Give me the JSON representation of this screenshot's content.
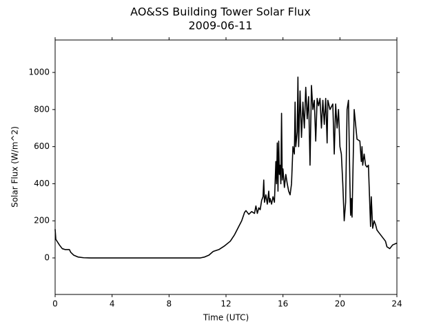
{
  "chart_data": {
    "type": "line",
    "title": "AO&SS Building Tower Solar Flux",
    "subtitle": "2009-06-11",
    "xlabel": "Time (UTC)",
    "ylabel": "Solar Flux (W/m^2)",
    "xlim": [
      0,
      24
    ],
    "xticks": [
      0,
      4,
      8,
      12,
      16,
      20,
      24
    ],
    "ylim": [
      -197,
      1175
    ],
    "yticks": [
      0,
      200,
      400,
      600,
      800,
      1000
    ],
    "series": [
      {
        "name": "Solar Flux",
        "color": "#000000",
        "x": [
          0,
          0.05,
          0.3,
          0.5,
          0.7,
          1.0,
          1.1,
          1.3,
          1.6,
          2.0,
          2.5,
          10.2,
          10.5,
          10.8,
          11.1,
          11.5,
          11.9,
          12.3,
          12.6,
          12.9,
          13.1,
          13.3,
          13.4,
          13.6,
          13.8,
          14.0,
          14.1,
          14.2,
          14.3,
          14.4,
          14.5,
          14.6,
          14.65,
          14.7,
          14.8,
          14.9,
          15.0,
          15.05,
          15.1,
          15.2,
          15.3,
          15.4,
          15.5,
          15.55,
          15.6,
          15.65,
          15.7,
          15.75,
          15.8,
          15.85,
          15.9,
          15.95,
          16.0,
          16.1,
          16.2,
          16.3,
          16.4,
          16.5,
          16.6,
          16.7,
          16.8,
          16.85,
          16.9,
          17.0,
          17.05,
          17.1,
          17.2,
          17.3,
          17.4,
          17.5,
          17.6,
          17.7,
          17.8,
          17.9,
          18.0,
          18.1,
          18.2,
          18.3,
          18.4,
          18.5,
          18.6,
          18.7,
          18.8,
          18.9,
          19.0,
          19.1,
          19.15,
          19.3,
          19.5,
          19.6,
          19.7,
          19.8,
          19.9,
          20.0,
          20.1,
          20.2,
          20.3,
          20.4,
          20.5,
          20.6,
          20.7,
          20.75,
          20.8,
          20.85,
          21.0,
          21.1,
          21.2,
          21.4,
          21.5,
          21.55,
          21.6,
          21.7,
          21.8,
          21.9,
          22.0,
          22.1,
          22.15,
          22.2,
          22.3,
          22.4,
          22.5,
          22.6,
          22.8,
          23.0,
          23.2,
          23.3,
          23.5,
          23.7,
          24.0
        ],
        "values": [
          155,
          100,
          70,
          50,
          45,
          45,
          30,
          15,
          5,
          1,
          0,
          0,
          5,
          15,
          35,
          45,
          65,
          90,
          125,
          170,
          200,
          245,
          255,
          235,
          250,
          240,
          280,
          240,
          270,
          260,
          310,
          330,
          420,
          300,
          340,
          290,
          360,
          300,
          320,
          290,
          330,
          300,
          520,
          400,
          620,
          360,
          630,
          450,
          500,
          400,
          780,
          420,
          480,
          380,
          450,
          400,
          360,
          340,
          400,
          600,
          560,
          840,
          600,
          680,
          975,
          600,
          900,
          650,
          840,
          700,
          920,
          750,
          870,
          500,
          930,
          800,
          850,
          630,
          860,
          820,
          860,
          700,
          850,
          720,
          860,
          620,
          850,
          800,
          830,
          560,
          830,
          700,
          800,
          600,
          560,
          400,
          200,
          300,
          800,
          850,
          400,
          230,
          320,
          220,
          800,
          720,
          640,
          630,
          520,
          600,
          500,
          560,
          500,
          490,
          500,
          280,
          170,
          330,
          160,
          200,
          180,
          150,
          130,
          110,
          90,
          60,
          50,
          70,
          80
        ]
      }
    ]
  }
}
